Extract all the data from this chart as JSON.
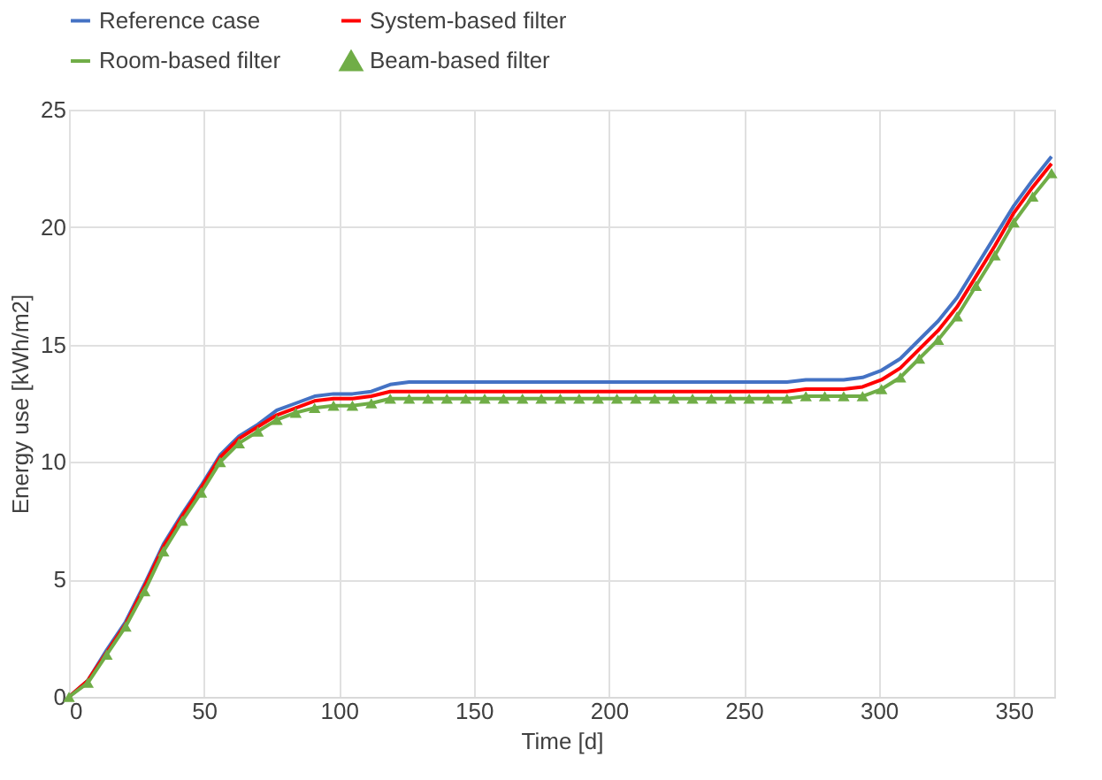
{
  "chart_data": {
    "type": "line",
    "xlabel": "Time [d]",
    "ylabel": "Energy use [kWh/m2]",
    "x": [
      0,
      7,
      14,
      21,
      28,
      35,
      42,
      49,
      56,
      63,
      70,
      77,
      84,
      91,
      98,
      105,
      112,
      119,
      126,
      133,
      140,
      147,
      154,
      161,
      168,
      175,
      182,
      189,
      196,
      203,
      210,
      217,
      224,
      231,
      238,
      245,
      252,
      259,
      266,
      273,
      280,
      287,
      294,
      301,
      308,
      315,
      322,
      329,
      336,
      343,
      350,
      357,
      364
    ],
    "series": [
      {
        "name": "Reference case",
        "color": "#4472c4",
        "values": [
          0,
          0.7,
          2.0,
          3.2,
          4.8,
          6.5,
          7.8,
          9.0,
          10.3,
          11.1,
          11.6,
          12.2,
          12.5,
          12.8,
          12.9,
          12.9,
          13.0,
          13.3,
          13.4,
          13.4,
          13.4,
          13.4,
          13.4,
          13.4,
          13.4,
          13.4,
          13.4,
          13.4,
          13.4,
          13.4,
          13.4,
          13.4,
          13.4,
          13.4,
          13.4,
          13.4,
          13.4,
          13.4,
          13.4,
          13.5,
          13.5,
          13.5,
          13.6,
          13.9,
          14.4,
          15.2,
          16.0,
          17.0,
          18.3,
          19.6,
          20.9,
          22.0,
          23.0
        ]
      },
      {
        "name": "System-based filter",
        "color": "#ff0000",
        "values": [
          0,
          0.7,
          1.9,
          3.1,
          4.7,
          6.4,
          7.7,
          8.9,
          10.2,
          11.0,
          11.5,
          12.0,
          12.3,
          12.6,
          12.7,
          12.7,
          12.8,
          13.0,
          13.0,
          13.0,
          13.0,
          13.0,
          13.0,
          13.0,
          13.0,
          13.0,
          13.0,
          13.0,
          13.0,
          13.0,
          13.0,
          13.0,
          13.0,
          13.0,
          13.0,
          13.0,
          13.0,
          13.0,
          13.0,
          13.1,
          13.1,
          13.1,
          13.2,
          13.5,
          14.0,
          14.8,
          15.6,
          16.6,
          17.9,
          19.2,
          20.6,
          21.7,
          22.7
        ]
      },
      {
        "name": "Room-based filter",
        "color": "#70ad47",
        "values": [
          0,
          0.6,
          1.8,
          3.0,
          4.5,
          6.2,
          7.5,
          8.7,
          10.0,
          10.8,
          11.3,
          11.8,
          12.1,
          12.3,
          12.4,
          12.4,
          12.5,
          12.7,
          12.7,
          12.7,
          12.7,
          12.7,
          12.7,
          12.7,
          12.7,
          12.7,
          12.7,
          12.7,
          12.7,
          12.7,
          12.7,
          12.7,
          12.7,
          12.7,
          12.7,
          12.7,
          12.7,
          12.7,
          12.7,
          12.8,
          12.8,
          12.8,
          12.8,
          13.1,
          13.6,
          14.4,
          15.2,
          16.2,
          17.5,
          18.8,
          20.2,
          21.3,
          22.3
        ]
      },
      {
        "name": "Beam-based filter",
        "color": "#70ad47",
        "type": "scatter",
        "marker": "triangle",
        "values": [
          0,
          0.6,
          1.8,
          3.0,
          4.5,
          6.2,
          7.5,
          8.7,
          10.0,
          10.8,
          11.3,
          11.8,
          12.1,
          12.3,
          12.4,
          12.4,
          12.5,
          12.7,
          12.7,
          12.7,
          12.7,
          12.7,
          12.7,
          12.7,
          12.7,
          12.7,
          12.7,
          12.7,
          12.7,
          12.7,
          12.7,
          12.7,
          12.7,
          12.7,
          12.7,
          12.7,
          12.7,
          12.7,
          12.7,
          12.8,
          12.8,
          12.8,
          12.8,
          13.1,
          13.6,
          14.4,
          15.2,
          16.2,
          17.5,
          18.8,
          20.2,
          21.3,
          22.3
        ]
      }
    ],
    "xlim": [
      0,
      365
    ],
    "xticks": [
      0,
      50,
      100,
      150,
      200,
      250,
      300,
      350
    ],
    "ylim": [
      0,
      25
    ],
    "yticks": [
      0,
      5,
      10,
      15,
      20,
      25
    ],
    "grid": true,
    "legend": "top",
    "marker": "none",
    "line_style": "solid"
  }
}
